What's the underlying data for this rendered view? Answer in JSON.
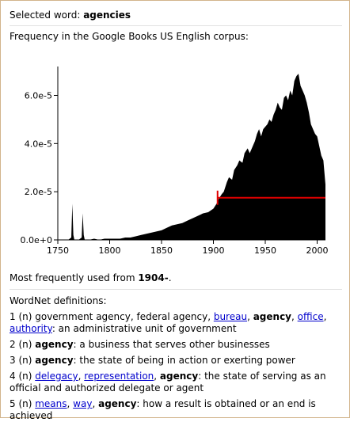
{
  "header": {
    "prefix": "Selected word: ",
    "word": "agencies"
  },
  "frequency_heading": "Frequency in the Google Books US English corpus:",
  "most_used": {
    "prefix": "Most frequently used from ",
    "value": "1904-",
    "suffix": "."
  },
  "wordnet_heading": "WordNet definitions:",
  "definitions": [
    [
      {
        "t": "1 (n) government agency, federal agency, "
      },
      {
        "t": "bureau",
        "link": true
      },
      {
        "t": ", "
      },
      {
        "t": "agency",
        "b": true
      },
      {
        "t": ", "
      },
      {
        "t": "office",
        "link": true
      },
      {
        "t": ", "
      },
      {
        "t": "authority",
        "link": true
      },
      {
        "t": ": an administrative unit of government"
      }
    ],
    [
      {
        "t": "2 (n) "
      },
      {
        "t": "agency",
        "b": true
      },
      {
        "t": ": a business that serves other businesses"
      }
    ],
    [
      {
        "t": "3 (n) "
      },
      {
        "t": "agency",
        "b": true
      },
      {
        "t": ": the state of being in action or exerting power"
      }
    ],
    [
      {
        "t": "4 (n) "
      },
      {
        "t": "delegacy",
        "link": true
      },
      {
        "t": ", "
      },
      {
        "t": "representation",
        "link": true
      },
      {
        "t": ", "
      },
      {
        "t": "agency",
        "b": true
      },
      {
        "t": ": the state of serving as an official and authorized delegate or agent"
      }
    ],
    [
      {
        "t": "5 (n) "
      },
      {
        "t": "means",
        "link": true
      },
      {
        "t": ", "
      },
      {
        "t": "way",
        "link": true
      },
      {
        "t": ", "
      },
      {
        "t": "agency",
        "b": true
      },
      {
        "t": ": how a result is obtained or an end is achieved"
      }
    ]
  ],
  "colors": {
    "area": "#000000",
    "marker": "#e00000",
    "border": "#d2b48c",
    "link": "#0000cc"
  },
  "chart_data": {
    "type": "area",
    "xlim": [
      1750,
      2008
    ],
    "ylim": [
      0,
      7.2e-05
    ],
    "xticks": [
      1750,
      1800,
      1850,
      1900,
      1950,
      2000
    ],
    "xtick_labels": [
      "1750",
      "1800",
      "1850",
      "1900",
      "1950",
      "2000"
    ],
    "yticks": [
      0,
      2e-05,
      4e-05,
      6e-05
    ],
    "ytick_labels": [
      "0.0e+0",
      "2.0e-5",
      "4.0e-5",
      "6.0e-5"
    ],
    "x": [
      1750,
      1755,
      1760,
      1763,
      1764,
      1765,
      1766,
      1770,
      1773,
      1774,
      1775,
      1776,
      1780,
      1785,
      1790,
      1795,
      1800,
      1805,
      1810,
      1815,
      1820,
      1825,
      1830,
      1835,
      1840,
      1845,
      1850,
      1855,
      1860,
      1865,
      1870,
      1875,
      1880,
      1885,
      1890,
      1895,
      1900,
      1903,
      1905,
      1908,
      1910,
      1913,
      1915,
      1918,
      1920,
      1923,
      1925,
      1928,
      1930,
      1933,
      1935,
      1938,
      1940,
      1942,
      1944,
      1946,
      1948,
      1950,
      1952,
      1954,
      1956,
      1958,
      1960,
      1962,
      1964,
      1966,
      1968,
      1970,
      1972,
      1974,
      1976,
      1978,
      1980,
      1982,
      1984,
      1986,
      1988,
      1990,
      1992,
      1994,
      1996,
      1998,
      2000,
      2002,
      2004,
      2006,
      2008
    ],
    "y": [
      0,
      0,
      0,
      1e-06,
      1.5e-05,
      2e-06,
      0,
      0,
      1e-06,
      1.1e-05,
      2e-06,
      0,
      0,
      5e-07,
      0,
      5e-07,
      5e-07,
      5e-07,
      5e-07,
      1e-06,
      1e-06,
      1.5e-06,
      2e-06,
      2.5e-06,
      3e-06,
      3.5e-06,
      4e-06,
      5e-06,
      6e-06,
      6.5e-06,
      7e-06,
      8e-06,
      9e-06,
      1e-05,
      1.1e-05,
      1.15e-05,
      1.3e-05,
      1.5e-05,
      1.7e-05,
      1.9e-05,
      2e-05,
      2.4e-05,
      2.6e-05,
      2.5e-05,
      2.9e-05,
      3.1e-05,
      3.3e-05,
      3.2e-05,
      3.6e-05,
      3.8e-05,
      3.6e-05,
      3.9e-05,
      4.1e-05,
      4.4e-05,
      4.6e-05,
      4.3e-05,
      4.6e-05,
      4.7e-05,
      4.8e-05,
      5e-05,
      4.9e-05,
      5.2e-05,
      5.4e-05,
      5.7e-05,
      5.5e-05,
      5.4e-05,
      5.9e-05,
      6e-05,
      5.8e-05,
      6.2e-05,
      6e-05,
      6.6e-05,
      6.8e-05,
      6.9e-05,
      6.4e-05,
      6.2e-05,
      6e-05,
      5.7e-05,
      5.3e-05,
      4.8e-05,
      4.6e-05,
      4.4e-05,
      4.3e-05,
      3.9e-05,
      3.5e-05,
      3.3e-05,
      2.3e-05
    ],
    "most_used_range": {
      "start": 1904,
      "end": 2008,
      "level": 1.75e-05
    }
  }
}
